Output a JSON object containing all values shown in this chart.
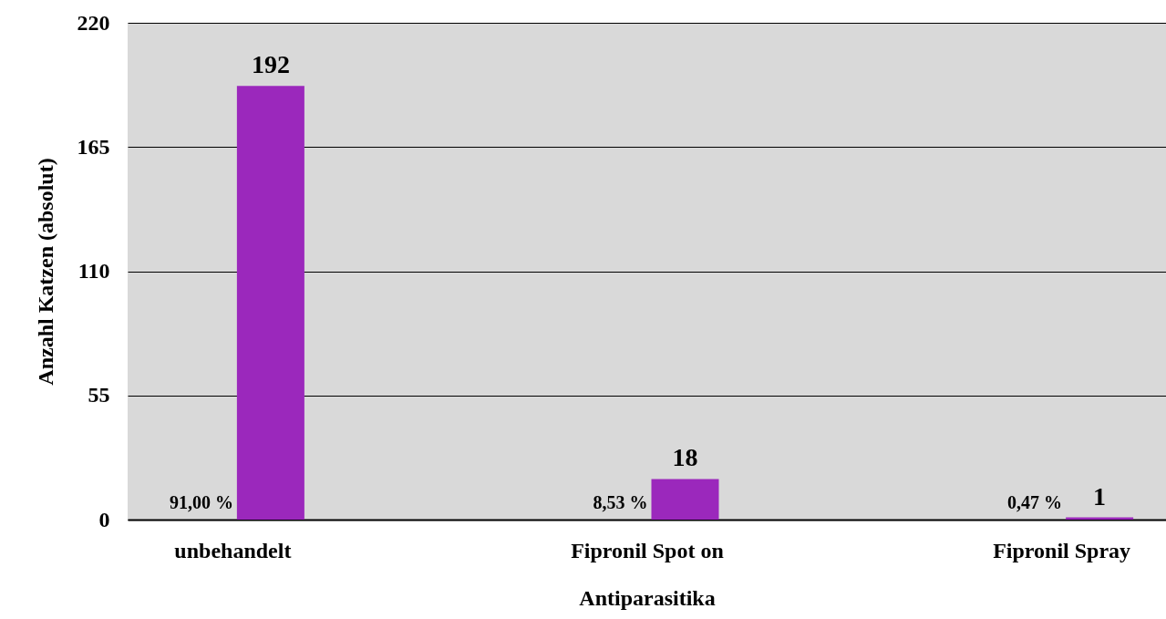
{
  "chart_data": {
    "type": "bar",
    "xlabel": "Antiparasitika",
    "ylabel": "Anzahl Katzen (absolut)",
    "categories": [
      "unbehandelt",
      "Fipronil Spot on",
      "Fipronil Spray"
    ],
    "values": [
      192,
      18,
      1
    ],
    "color": "#9b28bc",
    "ylim": [
      0,
      220
    ],
    "yticks": [
      0,
      55,
      110,
      165,
      220
    ],
    "grid": "y",
    "data_labels": true,
    "annotations": [
      "91,00 %",
      "8,53 %",
      "0,47 %"
    ]
  }
}
